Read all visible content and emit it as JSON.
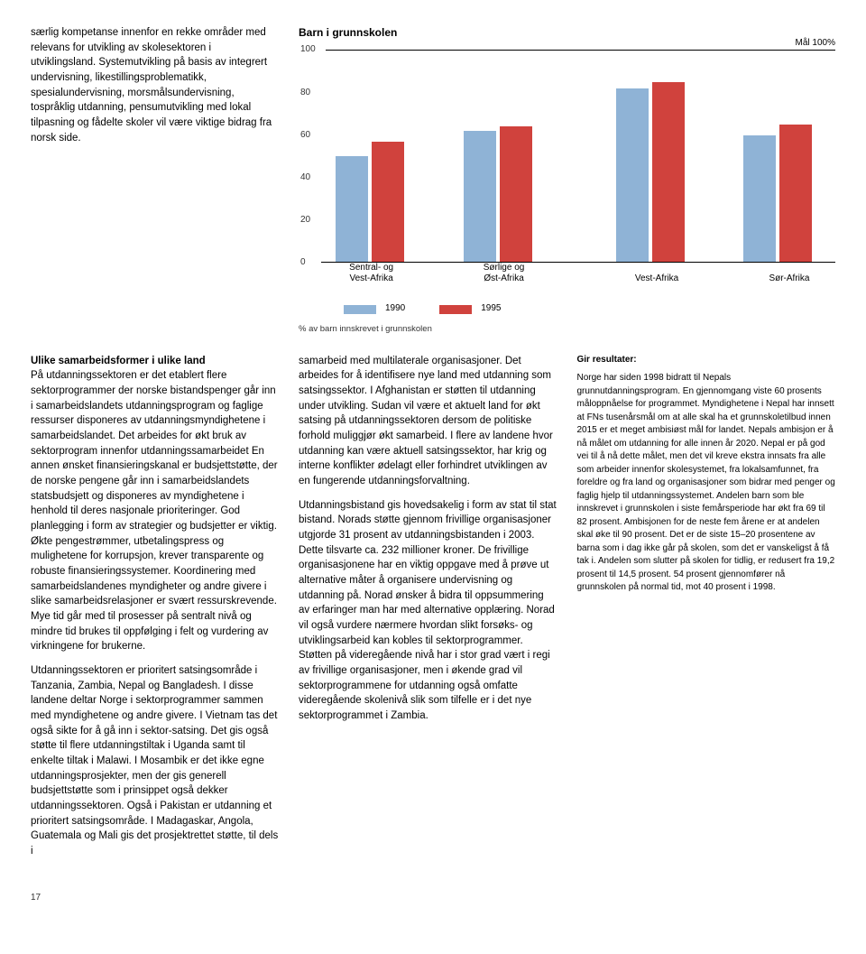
{
  "top_left": {
    "p1": "særlig kompetanse innenfor en rekke områder med relevans for utvikling av skolesektoren i utviklingsland. Systemutvikling på basis av integrert undervisning, likestillingsproblematikk, spesialundervisning, morsmålsundervisning, tospråklig utdanning, pensumutvikling med lokal tilpasning og fådelte skoler vil være viktige bidrag fra norsk side."
  },
  "chart": {
    "title": "Barn i grunnskolen",
    "goal_label": "Mål 100%",
    "y_ticks": [
      100,
      80,
      60,
      40,
      20,
      0
    ],
    "y_max": 100,
    "categories": [
      {
        "label": "Sentral- og\nVest-Afrika",
        "v1990": 50,
        "v1995": 57
      },
      {
        "label": "Sørlige og\nØst-Afrika",
        "v1990": 62,
        "v1995": 64
      },
      {
        "label": "Vest-Afrika",
        "v1990": 82,
        "v1995": 85
      },
      {
        "label": "Sør-Afrika",
        "v1990": 60,
        "v1995": 65
      }
    ],
    "group_left_pct": [
      2,
      27,
      57,
      82
    ],
    "xlabel_left_pct": [
      1,
      27,
      57,
      83
    ],
    "legend": {
      "l1990": "1990",
      "l1995": "1995"
    },
    "caption": "% av barn innskrevet i grunnskolen",
    "colors": {
      "c1990": "#8fb3d6",
      "c1995": "#d0423d"
    }
  },
  "col_left": {
    "h": "Ulike samarbeidsformer i ulike land",
    "p1": "På utdanningssektoren er det etablert flere sektorprogrammer der norske bistandspenger går inn i samarbeidslandets utdanningsprogram og faglige ressurser disponeres av utdanningsmyndighetene i samarbeidslandet. Det arbeides for økt bruk av sektorprogram innenfor utdanningssamarbeidet En annen ønsket finansieringskanal er budsjettstøtte, der de norske pengene går inn i samarbeidslandets statsbudsjett og disponeres av myndighetene i henhold til deres nasjonale prioriteringer. God planlegging i form av strategier og budsjetter er viktig. Økte pengestrømmer, utbetalingspress og mulighetene for korrupsjon, krever transparente og robuste finansieringssystemer. Koordinering med samarbeidslandenes myndigheter og andre givere i slike samarbeidsrelasjoner er svært ressurskrevende. Mye tid går med til prosesser på sentralt nivå og mindre tid brukes til oppfølging i felt og vurdering av virkningene for brukerne.",
    "p2": "Utdanningssektoren er prioritert satsingsområde i Tanzania, Zambia, Nepal og Bangladesh. I disse landene deltar Norge i sektorprogrammer sammen med myndighetene og andre givere. I Vietnam tas det også sikte for å gå inn i sektor-satsing. Det gis også støtte til flere utdanningstiltak i Uganda samt til enkelte tiltak i Malawi. I Mosambik er det ikke egne utdanningsprosjekter, men der gis generell budsjettstøtte som i prinsippet også dekker utdanningssektoren. Også i Pakistan er utdanning et prioritert satsingsområde. I Madagaskar, Angola, Guatemala og Mali gis det prosjektrettet støtte, til dels i"
  },
  "col_mid": {
    "p1": "samarbeid med multilaterale organisasjoner. Det arbeides for å identifisere nye land med utdanning som satsingssektor. I Afghanistan er støtten til utdanning under utvikling. Sudan vil være et aktuelt land for økt satsing på utdanningssektoren dersom de politiske forhold muliggjør økt samarbeid. I flere av landene hvor utdanning kan være aktuell satsingssektor, har krig og interne konflikter ødelagt eller forhindret utviklingen av en fungerende utdanningsforvaltning.",
    "p2": "Utdanningsbistand gis hovedsakelig i form av stat til stat bistand. Norads støtte gjennom frivillige organisasjoner utgjorde 31 prosent av utdanningsbistanden i 2003. Dette tilsvarte ca. 232 millioner kroner. De frivillige organisasjonene har en viktig oppgave med å prøve ut alternative måter å organisere undervisning og utdanning på. Norad ønsker å bidra til oppsummering av erfaringer man har med alternative opplæring. Norad vil også vurdere nærmere hvordan slikt forsøks- og utviklingsarbeid kan kobles til sektorprogrammer. Støtten på videregående nivå har i stor grad vært i regi av frivillige organisasjoner, men i økende grad vil sektorprogrammene for utdanning også omfatte videregående skolenivå slik som tilfelle er i det nye sektorprogrammet i Zambia."
  },
  "box": {
    "title": "Gir resultater:",
    "p1": "Norge har siden 1998 bidratt til Nepals grunnutdanningsprogram. En gjennomgang viste 60 prosents måloppnåelse for programmet. Myndighetene i Nepal har innsett at FNs tusenårsmål om at alle skal ha et grunnskoletilbud innen 2015 er et meget ambisiøst mål for landet. Nepals ambisjon er å nå målet om utdanning for alle innen år 2020. Nepal er på god vei til å nå dette målet, men det vil kreve ekstra innsats fra alle som arbeider innenfor skolesystemet, fra lokalsamfunnet, fra foreldre og fra land og organisasjoner som bidrar med penger og faglig hjelp til utdanningssystemet. Andelen barn som ble innskrevet i grunnskolen i siste femårsperiode har økt fra 69 til 82 prosent. Ambisjonen for de neste fem årene er at andelen skal øke til 90 prosent. Det er de siste 15–20 prosentene av barna som i dag ikke går på skolen, som det er vanskeligst å få tak i. Andelen som slutter på skolen for tidlig, er redusert fra 19,2 prosent til 14,5 prosent. 54 prosent gjennomfører nå grunnskolen på normal tid, mot 40 prosent i 1998."
  },
  "page": "17"
}
